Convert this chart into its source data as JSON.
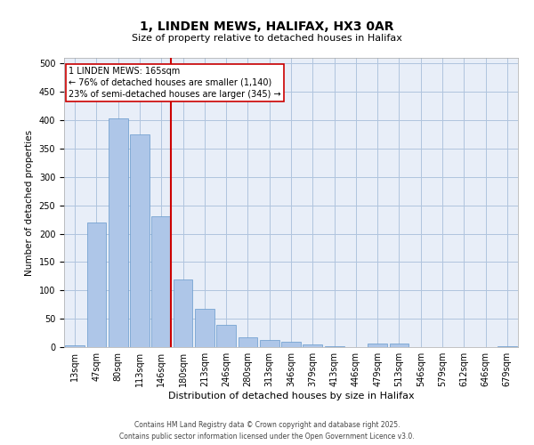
{
  "title": "1, LINDEN MEWS, HALIFAX, HX3 0AR",
  "subtitle": "Size of property relative to detached houses in Halifax",
  "xlabel": "Distribution of detached houses by size in Halifax",
  "ylabel": "Number of detached properties",
  "categories": [
    "13sqm",
    "47sqm",
    "80sqm",
    "113sqm",
    "146sqm",
    "180sqm",
    "213sqm",
    "246sqm",
    "280sqm",
    "313sqm",
    "346sqm",
    "379sqm",
    "413sqm",
    "446sqm",
    "479sqm",
    "513sqm",
    "546sqm",
    "579sqm",
    "612sqm",
    "646sqm",
    "679sqm"
  ],
  "values": [
    3,
    220,
    403,
    375,
    230,
    120,
    68,
    40,
    17,
    13,
    10,
    5,
    1,
    0,
    6,
    6,
    0,
    0,
    0,
    0,
    2
  ],
  "bar_color": "#aec6e8",
  "bar_edge_color": "#6699cc",
  "grid_color": "#b0c4de",
  "bg_color": "#e8eef8",
  "vline_color": "#cc0000",
  "annotation_text": "1 LINDEN MEWS: 165sqm\n← 76% of detached houses are smaller (1,140)\n23% of semi-detached houses are larger (345) →",
  "annotation_box_color": "#cc0000",
  "footer": "Contains HM Land Registry data © Crown copyright and database right 2025.\nContains public sector information licensed under the Open Government Licence v3.0.",
  "ylim": [
    0,
    510
  ],
  "yticks": [
    0,
    50,
    100,
    150,
    200,
    250,
    300,
    350,
    400,
    450,
    500
  ],
  "title_fontsize": 10,
  "subtitle_fontsize": 8,
  "xlabel_fontsize": 8,
  "ylabel_fontsize": 7.5,
  "tick_fontsize": 7,
  "annotation_fontsize": 7,
  "footer_fontsize": 5.5
}
